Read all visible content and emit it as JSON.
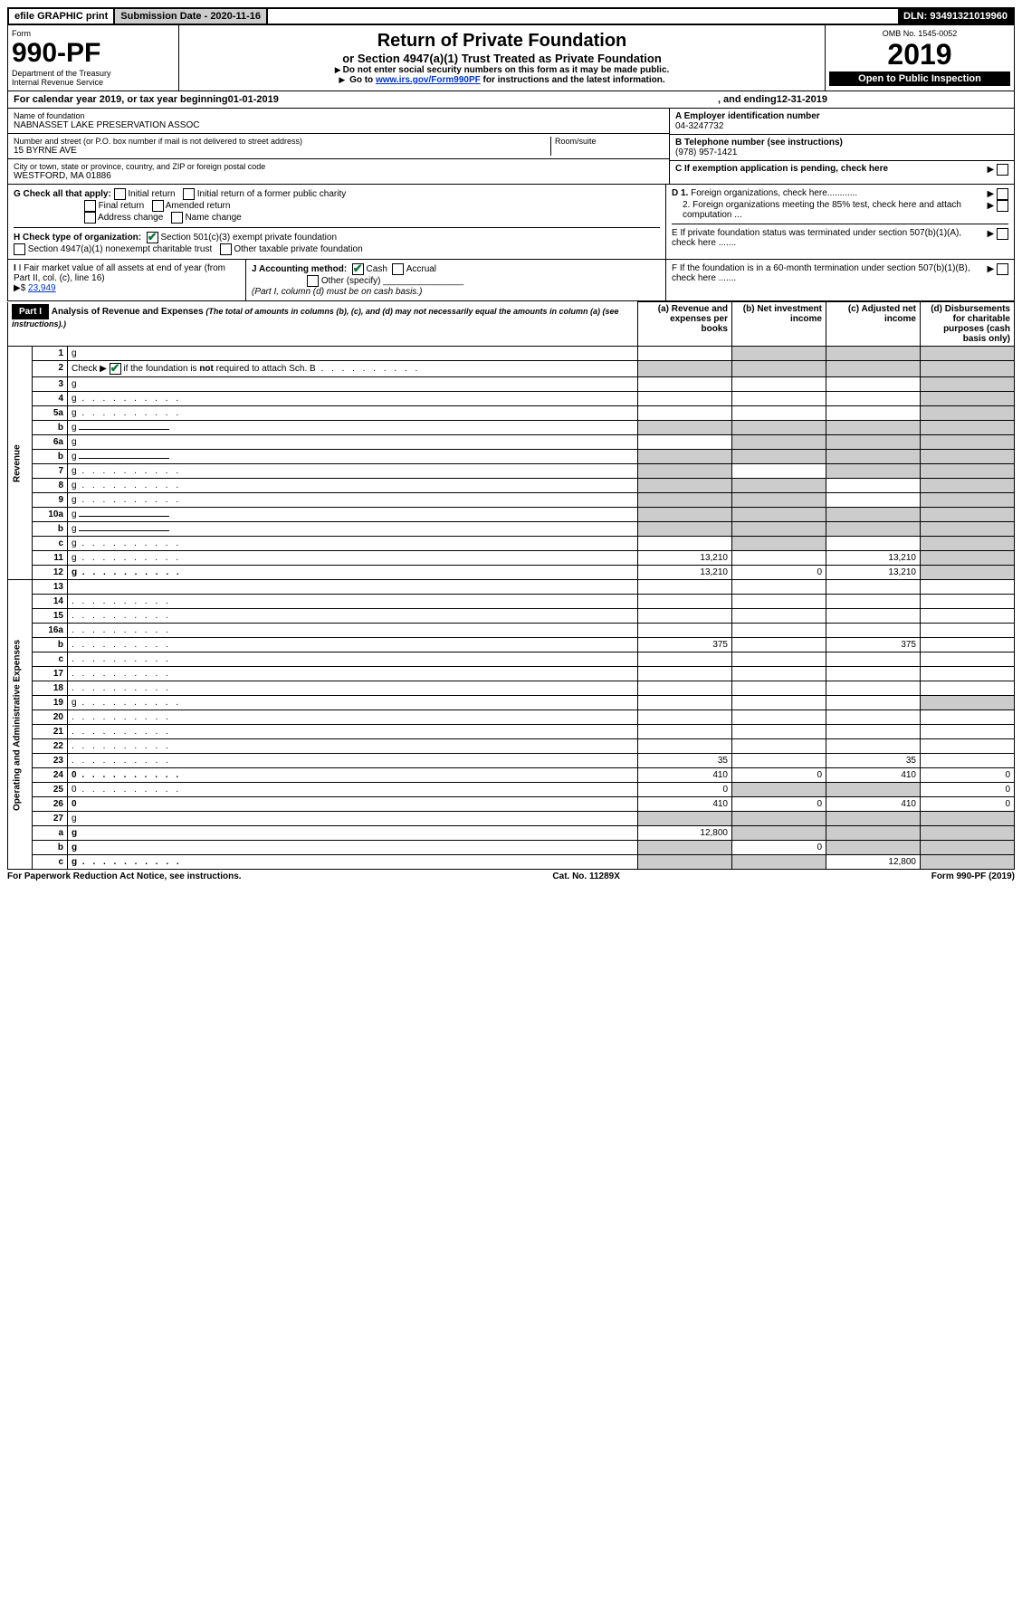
{
  "topbar": {
    "efile": "efile GRAPHIC print",
    "submission_label": "Submission Date - 2020-11-16",
    "dln": "DLN: 93491321019960"
  },
  "header": {
    "form_label": "Form",
    "form_number": "990-PF",
    "dept1": "Department of the Treasury",
    "dept2": "Internal Revenue Service",
    "title": "Return of Private Foundation",
    "subtitle": "or Section 4947(a)(1) Trust Treated as Private Foundation",
    "note1": "Do not enter social security numbers on this form as it may be made public.",
    "note2_pre": "Go to ",
    "note2_link": "www.irs.gov/Form990PF",
    "note2_post": " for instructions and the latest information.",
    "omb": "OMB No. 1545-0052",
    "year": "2019",
    "open": "Open to Public Inspection"
  },
  "calendar": {
    "pre": "For calendar year 2019, or tax year beginning ",
    "begin": "01-01-2019",
    "mid": " , and ending ",
    "end": "12-31-2019"
  },
  "entity": {
    "name_label": "Name of foundation",
    "name": "NABNASSET LAKE PRESERVATION ASSOC",
    "addr_label": "Number and street (or P.O. box number if mail is not delivered to street address)",
    "addr": "15 BYRNE AVE",
    "room_label": "Room/suite",
    "city_label": "City or town, state or province, country, and ZIP or foreign postal code",
    "city": "WESTFORD, MA  01886",
    "ein_label": "A Employer identification number",
    "ein": "04-3247732",
    "phone_label": "B Telephone number (see instructions)",
    "phone": "(978) 957-1421",
    "c_label": "C If exemption application is pending, check here"
  },
  "checks": {
    "g_label": "G Check all that apply:",
    "g_opts": [
      "Initial return",
      "Initial return of a former public charity",
      "Final return",
      "Amended return",
      "Address change",
      "Name change"
    ],
    "h_label": "H Check type of organization:",
    "h1": "Section 501(c)(3) exempt private foundation",
    "h2": "Section 4947(a)(1) nonexempt charitable trust",
    "h3": "Other taxable private foundation",
    "i_label": "I Fair market value of all assets at end of year (from Part II, col. (c), line 16)",
    "i_amt_pre": "▶$ ",
    "i_amt": "23,949",
    "j_label": "J Accounting method:",
    "j_cash": "Cash",
    "j_accrual": "Accrual",
    "j_other": "Other (specify)",
    "j_note": "(Part I, column (d) must be on cash basis.)",
    "d1": "D 1. Foreign organizations, check here............",
    "d2": "2. Foreign organizations meeting the 85% test, check here and attach computation ...",
    "e": "E  If private foundation status was terminated under section 507(b)(1)(A), check here .......",
    "f": "F  If the foundation is in a 60-month termination under section 507(b)(1)(B), check here ......."
  },
  "part1": {
    "label": "Part I",
    "title": "Analysis of Revenue and Expenses",
    "title_note": "(The total of amounts in columns (b), (c), and (d) may not necessarily equal the amounts in column (a) (see instructions).)",
    "col_a": "(a)   Revenue and expenses per books",
    "col_b": "(b)  Net investment income",
    "col_c": "(c)  Adjusted net income",
    "col_d": "(d)  Disbursements for charitable purposes (cash basis only)",
    "revenue_label": "Revenue",
    "opex_label": "Operating and Administrative Expenses"
  },
  "rows": [
    {
      "n": "1",
      "d": "g",
      "a": "",
      "b": "g",
      "c": "g"
    },
    {
      "n": "2",
      "d": "g",
      "a": "g",
      "b": "g",
      "c": "g",
      "dotted": true,
      "bold_not": true
    },
    {
      "n": "3",
      "d": "g",
      "a": "",
      "b": "",
      "c": ""
    },
    {
      "n": "4",
      "d": "g",
      "a": "",
      "b": "",
      "c": "",
      "dotted": true
    },
    {
      "n": "5a",
      "d": "g",
      "a": "",
      "b": "",
      "c": "",
      "dotted": true
    },
    {
      "n": "b",
      "d": "g",
      "a": "g",
      "b": "g",
      "c": "g",
      "underline": true
    },
    {
      "n": "6a",
      "d": "g",
      "a": "",
      "b": "g",
      "c": "g"
    },
    {
      "n": "b",
      "d": "g",
      "a": "g",
      "b": "g",
      "c": "g",
      "underline": true
    },
    {
      "n": "7",
      "d": "g",
      "a": "g",
      "b": "",
      "c": "g",
      "dotted": true
    },
    {
      "n": "8",
      "d": "g",
      "a": "g",
      "b": "g",
      "c": "",
      "dotted": true
    },
    {
      "n": "9",
      "d": "g",
      "a": "g",
      "b": "g",
      "c": "",
      "dotted": true
    },
    {
      "n": "10a",
      "d": "g",
      "a": "g",
      "b": "g",
      "c": "g",
      "underline": true
    },
    {
      "n": "b",
      "d": "g",
      "a": "g",
      "b": "g",
      "c": "g",
      "dotted": true,
      "underline": true
    },
    {
      "n": "c",
      "d": "g",
      "a": "",
      "b": "g",
      "c": "",
      "dotted": true
    },
    {
      "n": "11",
      "d": "g",
      "a": "13,210",
      "b": "",
      "c": "13,210",
      "dotted": true
    },
    {
      "n": "12",
      "d": "g",
      "a": "13,210",
      "b": "0",
      "c": "13,210",
      "bold": true,
      "dotted": true
    },
    {
      "n": "13",
      "d": "",
      "a": "",
      "b": "",
      "c": ""
    },
    {
      "n": "14",
      "d": "",
      "a": "",
      "b": "",
      "c": "",
      "dotted": true
    },
    {
      "n": "15",
      "d": "",
      "a": "",
      "b": "",
      "c": "",
      "dotted": true
    },
    {
      "n": "16a",
      "d": "",
      "a": "",
      "b": "",
      "c": "",
      "dotted": true
    },
    {
      "n": "b",
      "d": "",
      "a": "375",
      "b": "",
      "c": "375",
      "dotted": true
    },
    {
      "n": "c",
      "d": "",
      "a": "",
      "b": "",
      "c": "",
      "dotted": true
    },
    {
      "n": "17",
      "d": "",
      "a": "",
      "b": "",
      "c": "",
      "dotted": true
    },
    {
      "n": "18",
      "d": "",
      "a": "",
      "b": "",
      "c": "",
      "dotted": true
    },
    {
      "n": "19",
      "d": "g",
      "a": "",
      "b": "",
      "c": "",
      "dotted": true
    },
    {
      "n": "20",
      "d": "",
      "a": "",
      "b": "",
      "c": "",
      "dotted": true
    },
    {
      "n": "21",
      "d": "",
      "a": "",
      "b": "",
      "c": "",
      "dotted": true
    },
    {
      "n": "22",
      "d": "",
      "a": "",
      "b": "",
      "c": "",
      "dotted": true
    },
    {
      "n": "23",
      "d": "",
      "a": "35",
      "b": "",
      "c": "35",
      "dotted": true
    },
    {
      "n": "24",
      "d": "0",
      "a": "410",
      "b": "0",
      "c": "410",
      "bold": true,
      "dotted": true
    },
    {
      "n": "25",
      "d": "0",
      "a": "0",
      "b": "g",
      "c": "g",
      "dotted": true
    },
    {
      "n": "26",
      "d": "0",
      "a": "410",
      "b": "0",
      "c": "410",
      "bold": true
    },
    {
      "n": "27",
      "d": "g",
      "a": "g",
      "b": "g",
      "c": "g"
    },
    {
      "n": "a",
      "d": "g",
      "a": "12,800",
      "b": "g",
      "c": "g",
      "bold": true
    },
    {
      "n": "b",
      "d": "g",
      "a": "g",
      "b": "0",
      "c": "g",
      "bold": true
    },
    {
      "n": "c",
      "d": "g",
      "a": "g",
      "b": "g",
      "c": "12,800",
      "bold": true,
      "dotted": true
    }
  ],
  "footer": {
    "left": "For Paperwork Reduction Act Notice, see instructions.",
    "mid": "Cat. No. 11289X",
    "right": "Form 990-PF (2019)"
  }
}
